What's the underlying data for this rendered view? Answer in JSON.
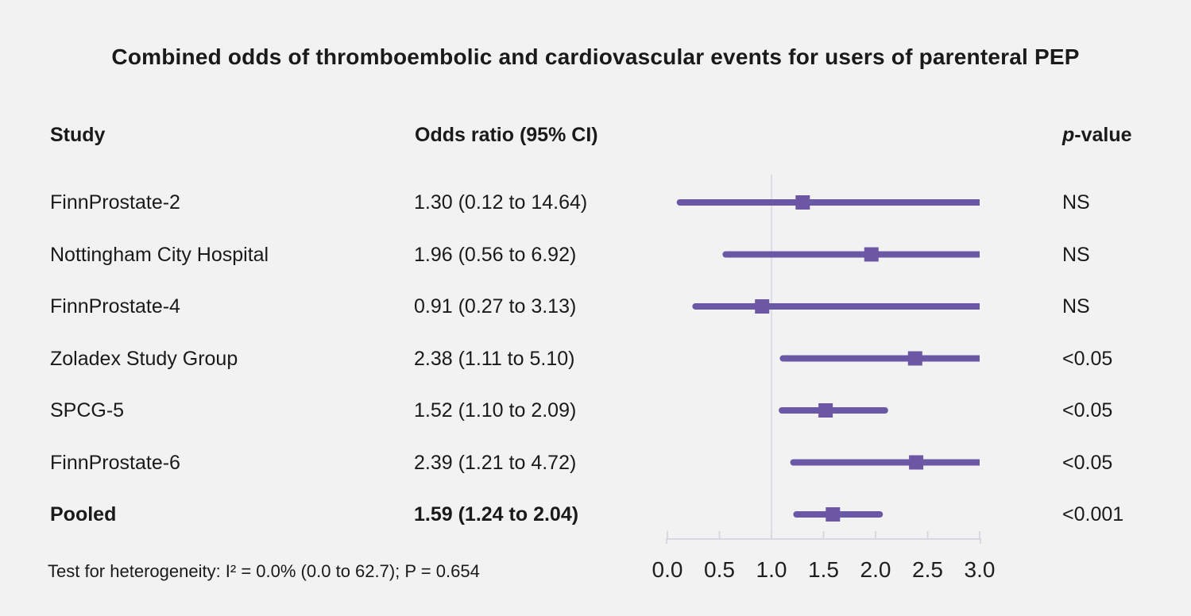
{
  "page": {
    "background": "#f2f2f3"
  },
  "title": "Combined odds of thromboembolic and cardiovascular events for users of parenteral PEP",
  "columns": {
    "study": "Study",
    "odds_ratio": "Odds ratio (95% CI)",
    "p_italic": "p",
    "p_rest": "-value"
  },
  "footnote": "Test for heterogeneity: I² = 0.0% (0.0 to 62.7); P = 0.654",
  "chart_data": {
    "type": "forest",
    "title": "Combined odds of thromboembolic and cardiovascular events for users of parenteral PEP",
    "xlim": [
      0.0,
      3.0
    ],
    "xticks": [
      "0.0",
      "0.5",
      "1.0",
      "1.5",
      "2.0",
      "2.5",
      "3.0"
    ],
    "reference_line": 1.0,
    "grid": false,
    "legend": "none",
    "colors": {
      "ci_line": "#6a58a7",
      "marker": "#6d56a4",
      "reference_line": "#dbdfe5",
      "axis": "#d6dae0",
      "text": "#1a1a1a"
    },
    "rows": [
      {
        "study": "FinnProstate-2",
        "or_label": "1.30 (0.12 to 14.64)",
        "estimate": 1.3,
        "ci_low": 0.12,
        "ci_high": 14.64,
        "p_value": "NS",
        "bold": false
      },
      {
        "study": "Nottingham City Hospital",
        "or_label": "1.96 (0.56 to 6.92)",
        "estimate": 1.96,
        "ci_low": 0.56,
        "ci_high": 6.92,
        "p_value": "NS",
        "bold": false
      },
      {
        "study": "FinnProstate-4",
        "or_label": "0.91 (0.27 to 3.13)",
        "estimate": 0.91,
        "ci_low": 0.27,
        "ci_high": 3.13,
        "p_value": "NS",
        "bold": false
      },
      {
        "study": "Zoladex Study Group",
        "or_label": "2.38 (1.11 to 5.10)",
        "estimate": 2.38,
        "ci_low": 1.11,
        "ci_high": 5.1,
        "p_value": "<0.05",
        "bold": false
      },
      {
        "study": "SPCG-5",
        "or_label": "1.52 (1.10 to 2.09)",
        "estimate": 1.52,
        "ci_low": 1.1,
        "ci_high": 2.09,
        "p_value": "<0.05",
        "bold": false
      },
      {
        "study": "FinnProstate-6",
        "or_label": "2.39 (1.21 to 4.72)",
        "estimate": 2.39,
        "ci_low": 1.21,
        "ci_high": 4.72,
        "p_value": "<0.05",
        "bold": false
      },
      {
        "study": "Pooled",
        "or_label": "1.59 (1.24 to 2.04)",
        "estimate": 1.59,
        "ci_low": 1.24,
        "ci_high": 2.04,
        "p_value": "<0.001",
        "bold": true
      }
    ],
    "heterogeneity": "Test for heterogeneity: I² = 0.0% (0.0 to 62.7); P = 0.654"
  }
}
